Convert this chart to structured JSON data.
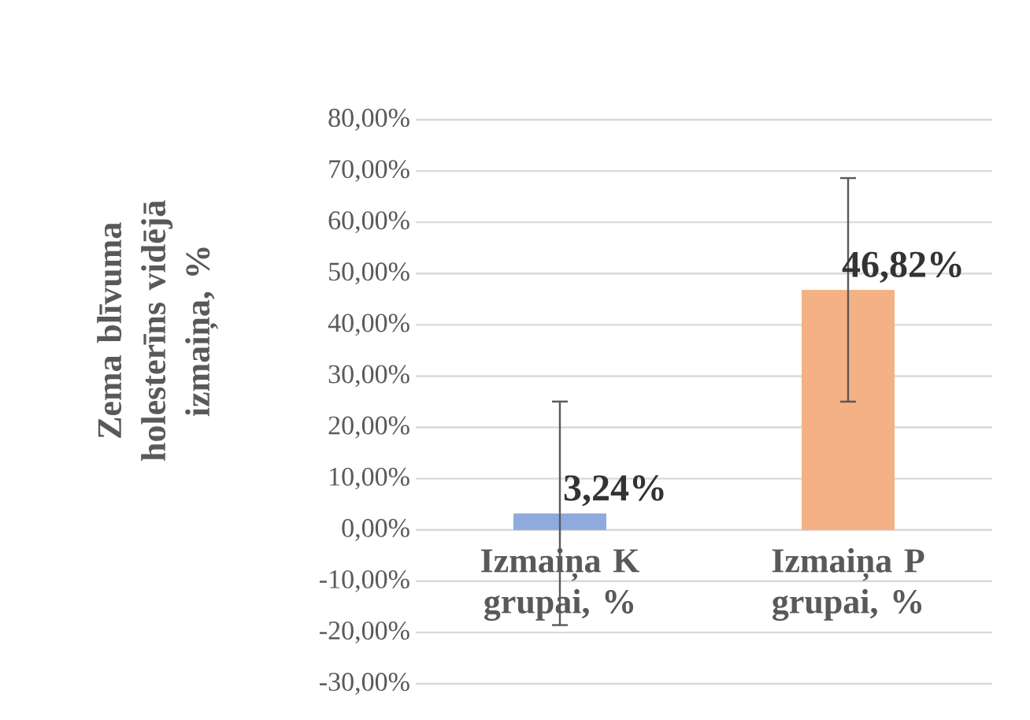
{
  "chart_data": {
    "type": "bar",
    "ylabel": "Zema blīvuma holesterīns vidējā izmaiņa, %",
    "categories": [
      "Izmaiņa K grupai, %",
      "Izmaiņa P grupai, %"
    ],
    "values": [
      3.24,
      46.82
    ],
    "colors": [
      "#8faadc",
      "#f4b183"
    ],
    "errors": [
      21.8,
      21.8
    ],
    "value_labels": [
      "3,24%",
      "46,82%"
    ],
    "ylim": [
      -30,
      80
    ],
    "yticks": [
      {
        "value": -30,
        "label": "-30,00%"
      },
      {
        "value": -20,
        "label": "-20,00%"
      },
      {
        "value": -10,
        "label": "-10,00%"
      },
      {
        "value": 0,
        "label": "0,00%"
      },
      {
        "value": 10,
        "label": "10,00%"
      },
      {
        "value": 20,
        "label": "20,00%"
      },
      {
        "value": 30,
        "label": "30,00%"
      },
      {
        "value": 40,
        "label": "40,00%"
      },
      {
        "value": 50,
        "label": "50,00%"
      },
      {
        "value": 60,
        "label": "60,00%"
      },
      {
        "value": 70,
        "label": "70,00%"
      },
      {
        "value": 80,
        "label": "80,00%"
      }
    ],
    "grid": "y"
  }
}
